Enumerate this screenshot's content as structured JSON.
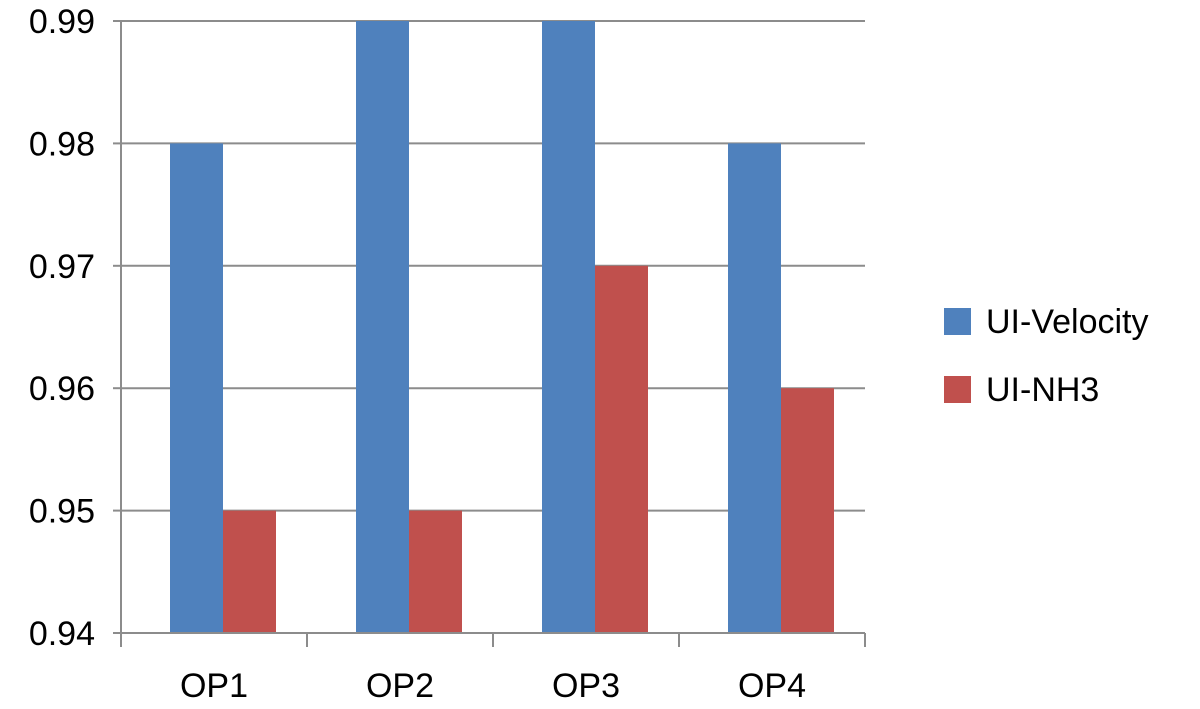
{
  "chart_data": {
    "type": "bar",
    "title": "",
    "xlabel": "",
    "ylabel": "",
    "categories": [
      "OP1",
      "OP2",
      "OP3",
      "OP4"
    ],
    "series": [
      {
        "name": "UI-Velocity",
        "values": [
          0.98,
          0.99,
          0.99,
          0.98
        ],
        "color": "#4f81bd"
      },
      {
        "name": "UI-NH3",
        "values": [
          0.95,
          0.95,
          0.97,
          0.96
        ],
        "color": "#c0504d"
      }
    ],
    "ylim": [
      0.94,
      0.99
    ],
    "yticks": [
      "0.94",
      "0.95",
      "0.96",
      "0.97",
      "0.98",
      "0.99"
    ],
    "grid": true,
    "legend_position": "right"
  }
}
